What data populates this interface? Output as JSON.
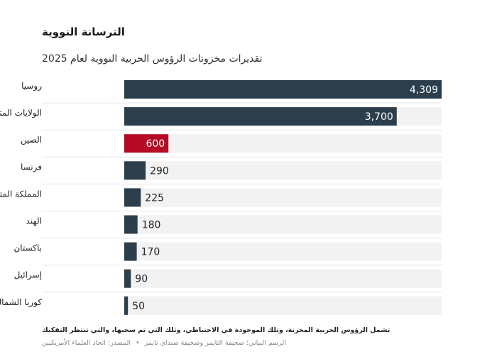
{
  "chart_data": {
    "type": "bar",
    "orientation": "horizontal",
    "title": "الترسانة النووية",
    "subtitle": "تقديرات مخزونات الرؤوس الحربية النووية لعام 2025",
    "categories": [
      "روسيا",
      "الولايات المتحدة",
      "الصين",
      "فرنسا",
      "المملكة المتحدة",
      "الهند",
      "باكستان",
      "إسرائيل",
      "كوريا الشمالية"
    ],
    "values": [
      4309,
      3700,
      600,
      290,
      225,
      180,
      170,
      90,
      50
    ],
    "value_labels": [
      "4,309",
      "3,700",
      "600",
      "290",
      "225",
      "180",
      "170",
      "90",
      "50"
    ],
    "highlight_index": 2,
    "xlim": [
      0,
      4309
    ],
    "grid": false,
    "colors": {
      "bar": "#2c3e4c",
      "highlight": "#b40a26",
      "track": "#f2f2f2",
      "label_inside": "#ffffff",
      "label_outside": "#222222"
    }
  },
  "footnote": "تشمل الرؤوس الحربية المخزنة، وتلك الموجودة في الاحتياطي، وتلك التي تم سحبها، والتي تنتظر التفكيك",
  "credits": {
    "graphic": "الرسم البياني: صحيفة التايمز وصحيفة صنداي تايمز",
    "separator": "•",
    "source": "المصدر: اتحاد العلماء الأمريكيين"
  }
}
